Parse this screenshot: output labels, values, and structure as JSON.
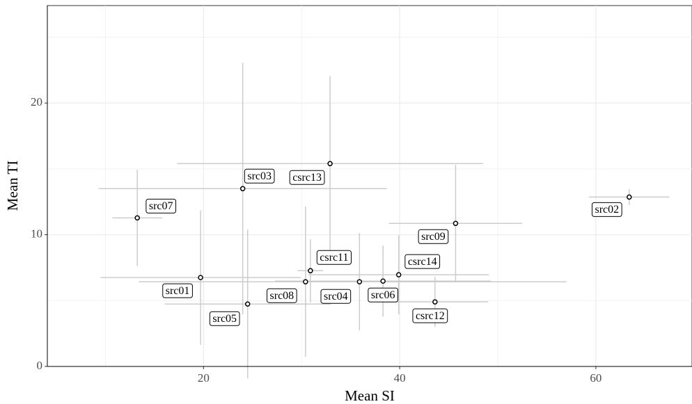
{
  "chart_data": {
    "type": "scatter",
    "x_label": "Mean SI",
    "y_label": "Mean TI",
    "labels": [
      "src07",
      "src01",
      "src05",
      "src03",
      "csrc13",
      "src08",
      "csrc11",
      "src04",
      "src06",
      "csrc14",
      "csrc12",
      "src09",
      "src02"
    ],
    "x": [
      13.25,
      19.7,
      24.5,
      24.0,
      32.9,
      30.4,
      30.9,
      35.9,
      38.3,
      39.9,
      43.6,
      45.7,
      63.4
    ],
    "values": [
      11.28,
      6.75,
      4.74,
      13.5,
      15.4,
      6.43,
      7.27,
      6.43,
      6.48,
      6.96,
      4.9,
      10.86,
      12.86
    ],
    "xerr": [
      2.55,
      10.2,
      8.45,
      14.7,
      15.6,
      17.0,
      1.3,
      21.1,
      11.0,
      9.2,
      5.4,
      6.8,
      4.1
    ],
    "yerr": [
      3.65,
      5.1,
      5.65,
      9.55,
      6.65,
      5.7,
      2.4,
      3.7,
      2.7,
      3.0,
      1.9,
      4.45,
      0.6
    ],
    "point_color": "#000000",
    "error_color": "#cccccc",
    "xlim": [
      4.08,
      69.8
    ],
    "ylim": [
      0,
      27.4
    ],
    "xticks": [
      20,
      40,
      60
    ],
    "yticks": [
      0,
      10,
      20
    ],
    "grid": true
  }
}
